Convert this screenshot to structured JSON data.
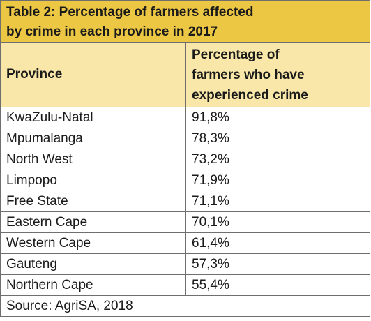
{
  "table": {
    "title_line1": "Table 2: Percentage of farmers affected",
    "title_line2": "by crime in each province in 2017",
    "headers": {
      "province": "Province",
      "pct_line1": "Percentage of",
      "pct_line2": "farmers who have",
      "pct_line3": "experienced crime"
    },
    "rows": [
      {
        "province": "KwaZulu-Natal",
        "pct": "91,8%"
      },
      {
        "province": "Mpumalanga",
        "pct": "78,3%"
      },
      {
        "province": "North West",
        "pct": "73,2%"
      },
      {
        "province": "Limpopo",
        "pct": "71,9%"
      },
      {
        "province": "Free State",
        "pct": "71,1%"
      },
      {
        "province": "Eastern Cape",
        "pct": "70,1%"
      },
      {
        "province": "Western Cape",
        "pct": "61,4%"
      },
      {
        "province": "Gauteng",
        "pct": "57,3%"
      },
      {
        "province": "Northern Cape",
        "pct": "55,4%"
      }
    ],
    "source": "Source: AgriSA, 2018"
  },
  "colors": {
    "title_background": "#ecc744",
    "header_background": "#f8e7a9",
    "border": "#6f6f6f"
  }
}
